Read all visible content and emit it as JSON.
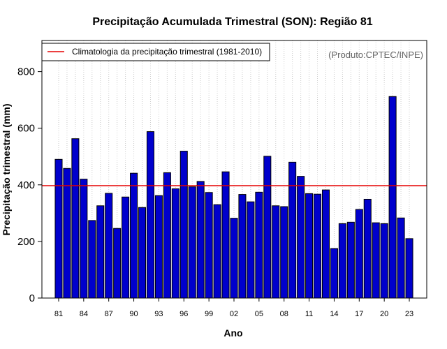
{
  "chart_data": {
    "type": "bar",
    "title": "Precipitação Acumulada Trimestral (SON): Região 81",
    "xlabel": "Ano",
    "ylabel": "Precipitação trimestral (mm)",
    "credit": "(Produto:CPTEC/INPE)",
    "legend": {
      "label": "Climatologia da precipitação trimestral (1981-2010)",
      "placement": "top-left"
    },
    "climatology": 397,
    "ylim": [
      0,
      910
    ],
    "yticks": [
      0,
      200,
      400,
      600,
      800
    ],
    "xtick_labels": [
      "81",
      "84",
      "87",
      "90",
      "93",
      "96",
      "99",
      "02",
      "05",
      "08",
      "11",
      "14",
      "17",
      "20",
      "23"
    ],
    "xtick_every": 3,
    "categories": [
      "1981",
      "1982",
      "1983",
      "1984",
      "1985",
      "1986",
      "1987",
      "1988",
      "1989",
      "1990",
      "1991",
      "1992",
      "1993",
      "1994",
      "1995",
      "1996",
      "1997",
      "1998",
      "1999",
      "2000",
      "2001",
      "2002",
      "2003",
      "2004",
      "2005",
      "2006",
      "2007",
      "2008",
      "2009",
      "2010",
      "2011",
      "2012",
      "2013",
      "2014",
      "2015",
      "2016",
      "2017",
      "2018",
      "2019",
      "2020",
      "2021",
      "2022",
      "2023"
    ],
    "values": [
      490,
      458,
      563,
      420,
      274,
      326,
      370,
      246,
      357,
      441,
      320,
      588,
      362,
      443,
      386,
      519,
      393,
      412,
      373,
      330,
      446,
      282,
      366,
      340,
      374,
      501,
      326,
      323,
      480,
      430,
      369,
      367,
      382,
      175,
      263,
      268,
      313,
      349,
      266,
      263,
      712,
      283,
      210
    ],
    "colors": {
      "bar_fill": "#0000cc",
      "bar_stroke": "#000000",
      "climatology_line": "#e60000",
      "grid": "#cccccc"
    },
    "grid": true
  }
}
